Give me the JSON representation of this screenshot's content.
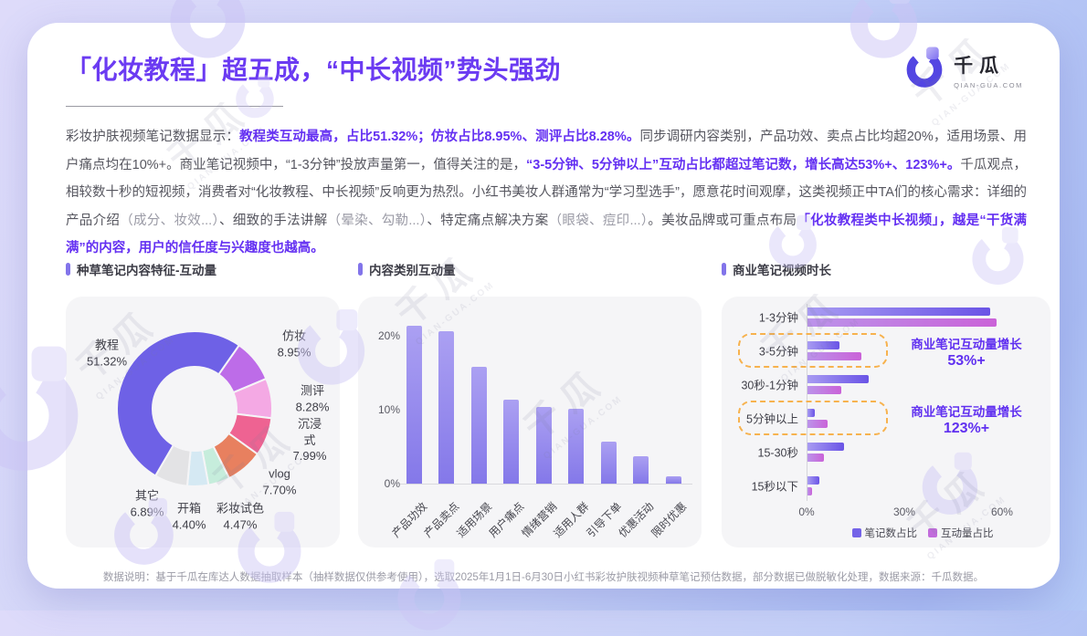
{
  "page": {
    "title": "「化妆教程」超五成，“中长视频”势头强劲",
    "footer": "数据说明：基于千瓜在库达人数据抽取样本（抽样数据仅供参考使用），选取2025年1月1日-6月30日小红书彩妆护肤视频种草笔记预估数据，部分数据已做脱敏化处理，数据来源：千瓜数据。"
  },
  "logo": {
    "name": "千瓜",
    "domain": "QIAN-GUA.COM"
  },
  "decor": {
    "watermark_cn": "千瓜",
    "watermark_en": "QIAN-GUA.COM"
  },
  "colors": {
    "accent_purple": "#6b3bf2",
    "marker_purple": "#8274ea",
    "dashed_highlight": "#f7b24e",
    "series_note": "#7463e8",
    "series_engagement": "#c26cdc"
  },
  "paragraph": {
    "segments": [
      {
        "t": "彩妆护肤视频笔记数据显示：",
        "s": "n"
      },
      {
        "t": "教程类互动最高，占比51.32%；仿妆占比8.95%、测评占比8.28%。",
        "s": "e"
      },
      {
        "t": "同步调研内容类别，产品功效、卖点占比均超20%，适用场景、用户痛点均在10%+。商业笔记视频中，“1-3分钟”投放声量第一，值得关注的是，",
        "s": "n"
      },
      {
        "t": "“3-5分钟、5分钟以上”互动占比都超过笔记数，增长高达53%+、123%+。",
        "s": "e"
      },
      {
        "t": "千瓜观点，相较数十秒的短视频，消费者对“化妆教程、中长视频”反响更为热烈。小红书美妆人群通常为“学习型选手”，愿意花时间观摩，这类视频正中TA们的核心需求：详细的产品介绍",
        "s": "n"
      },
      {
        "t": "（成分、妆效...）",
        "s": "l"
      },
      {
        "t": "、细致的手法讲解",
        "s": "n"
      },
      {
        "t": "（晕染、勾勒...）",
        "s": "l"
      },
      {
        "t": "、特定痛点解决方案",
        "s": "n"
      },
      {
        "t": "（眼袋、痘印...）",
        "s": "l"
      },
      {
        "t": "。美妆品牌或可重点布局",
        "s": "n"
      },
      {
        "t": "「化妆教程类中长视频」，越是“干货满满”的内容，用户的信任度与兴趣度也越高。",
        "s": "e"
      }
    ]
  },
  "chart_data": [
    {
      "type": "pie",
      "style": "donut",
      "title": "种草笔记内容特征-互动量",
      "unit": "%",
      "start_angle_deg": 35,
      "direction": "clockwise",
      "slices": [
        {
          "label": "仿妆",
          "value": 8.95,
          "color": "#bd6ce8"
        },
        {
          "label": "测评",
          "value": 8.28,
          "color": "#f4a9e4"
        },
        {
          "label": "沉浸式",
          "value": 7.99,
          "color": "#ee6392"
        },
        {
          "label": "vlog",
          "value": 7.7,
          "color": "#e8805f"
        },
        {
          "label": "彩妆试色",
          "value": 4.47,
          "color": "#c6eddc"
        },
        {
          "label": "开箱",
          "value": 4.4,
          "color": "#d5e9f3"
        },
        {
          "label": "其它",
          "value": 6.89,
          "color": "#e3e3e5"
        },
        {
          "label": "教程",
          "value": 51.32,
          "color": "#6e61e6"
        }
      ]
    },
    {
      "type": "bar",
      "title": "内容类别互动量",
      "unit": "%",
      "categories": [
        "产品功效",
        "产品卖点",
        "适用场景",
        "用户痛点",
        "情绪营销",
        "适用人群",
        "引导下单",
        "优惠活动",
        "限时优惠"
      ],
      "values": [
        21.4,
        20.6,
        15.8,
        11.4,
        10.4,
        10.1,
        5.7,
        3.7,
        1.0
      ],
      "yticks": [
        0,
        10,
        20
      ],
      "ylim": [
        0,
        22.5
      ],
      "grid": false
    },
    {
      "type": "bar",
      "orientation": "horizontal",
      "title": "商业笔记视频时长",
      "unit": "%",
      "categories": [
        "1-3分钟",
        "3-5分钟",
        "30秒-1分钟",
        "5分钟以上",
        "15-30秒",
        "15秒以下"
      ],
      "series": [
        {
          "name": "笔记数占比",
          "color": "#7463e8",
          "values": [
            56,
            9.8,
            18.8,
            2.2,
            11.1,
            3.6
          ]
        },
        {
          "name": "互动量占比",
          "color": "#c26cdc",
          "values": [
            58,
            16.5,
            10.4,
            6.2,
            5.0,
            1.4
          ]
        }
      ],
      "xticks": [
        0,
        30,
        60
      ],
      "xlim": [
        0,
        67
      ],
      "legend_position": "bottom",
      "annotations": [
        {
          "row_index": 1,
          "row_label": "3-5分钟",
          "line1": "商业笔记互动量增长",
          "line2": "53%+"
        },
        {
          "row_index": 3,
          "row_label": "5分钟以上",
          "line1": "商业笔记互动量增长",
          "line2": "123%+"
        }
      ]
    }
  ]
}
